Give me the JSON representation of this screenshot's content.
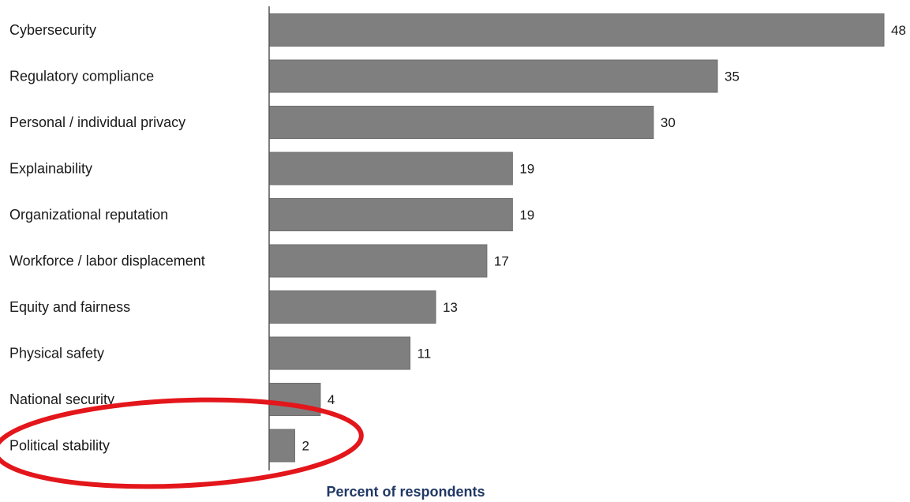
{
  "chart_data": {
    "type": "bar",
    "orientation": "horizontal",
    "categories": [
      "Cybersecurity",
      "Regulatory compliance",
      "Personal / individual privacy",
      "Explainability",
      "Organizational reputation",
      "Workforce / labor displacement",
      "Equity and fairness",
      "Physical safety",
      "National security",
      "Political stability"
    ],
    "values": [
      48,
      35,
      30,
      19,
      19,
      17,
      13,
      11,
      4,
      2
    ],
    "xlabel": "Percent of respondents",
    "xlim": [
      0,
      48
    ],
    "grid": false,
    "legend": "none",
    "data_labels": true
  },
  "annotation": {
    "shape": "ellipse",
    "target": "Political stability"
  },
  "colors": {
    "bar": "#7f7f7f",
    "bar_edge": "#6e6e6e",
    "axis": "#555555",
    "text": "#1a1a1a",
    "xlabel": "#1f3864",
    "annotation": "#e3161b"
  }
}
